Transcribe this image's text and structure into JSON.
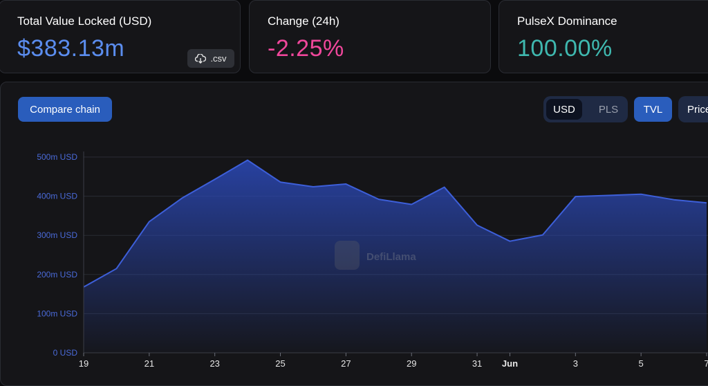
{
  "cards": [
    {
      "label": "Total Value Locked (USD)",
      "value": "$383.13m",
      "color": "#5b8def"
    },
    {
      "label": "Change (24h)",
      "value": "-2.25%",
      "color": "#f0479b"
    },
    {
      "label": "PulseX Dominance",
      "value": "100.00%",
      "color": "#3fb8af"
    }
  ],
  "csv_label": ".csv",
  "compare_label": "Compare chain",
  "currency_toggle": {
    "options": [
      "USD",
      "PLS"
    ],
    "selected": "USD"
  },
  "tvl_label": "TVL",
  "price_label": "Price",
  "watermark": "DefiLlama",
  "colors": {
    "accent": "#2a5dbc",
    "line": "#3d5fd9",
    "pink": "#f0479b",
    "teal": "#3fb8af"
  },
  "chart_data": {
    "type": "area",
    "title": "",
    "xlabel": "",
    "ylabel": "",
    "ylim": [
      0,
      500
    ],
    "yticks": [
      "0 USD",
      "100m USD",
      "200m USD",
      "300m USD",
      "400m USD",
      "500m USD"
    ],
    "xticks": [
      {
        "label": "19",
        "i": 0
      },
      {
        "label": "21",
        "i": 2
      },
      {
        "label": "23",
        "i": 4
      },
      {
        "label": "25",
        "i": 6
      },
      {
        "label": "27",
        "i": 8
      },
      {
        "label": "29",
        "i": 10
      },
      {
        "label": "31",
        "i": 12
      },
      {
        "label": "Jun",
        "i": 13,
        "bold": true
      },
      {
        "label": "3",
        "i": 15
      },
      {
        "label": "5",
        "i": 17
      },
      {
        "label": "7",
        "i": 19
      }
    ],
    "x": [
      "May 19",
      "May 20",
      "May 21",
      "May 22",
      "May 23",
      "May 24",
      "May 25",
      "May 26",
      "May 27",
      "May 28",
      "May 29",
      "May 30",
      "May 31",
      "Jun 1",
      "Jun 2",
      "Jun 3",
      "Jun 4",
      "Jun 5",
      "Jun 6",
      "Jun 7"
    ],
    "series": [
      {
        "values": [
          168,
          215,
          335,
          395,
          443,
          492,
          436,
          424,
          431,
          392,
          379,
          423,
          326,
          285,
          301,
          399,
          402,
          405,
          391,
          383
        ]
      }
    ],
    "grid": true
  }
}
